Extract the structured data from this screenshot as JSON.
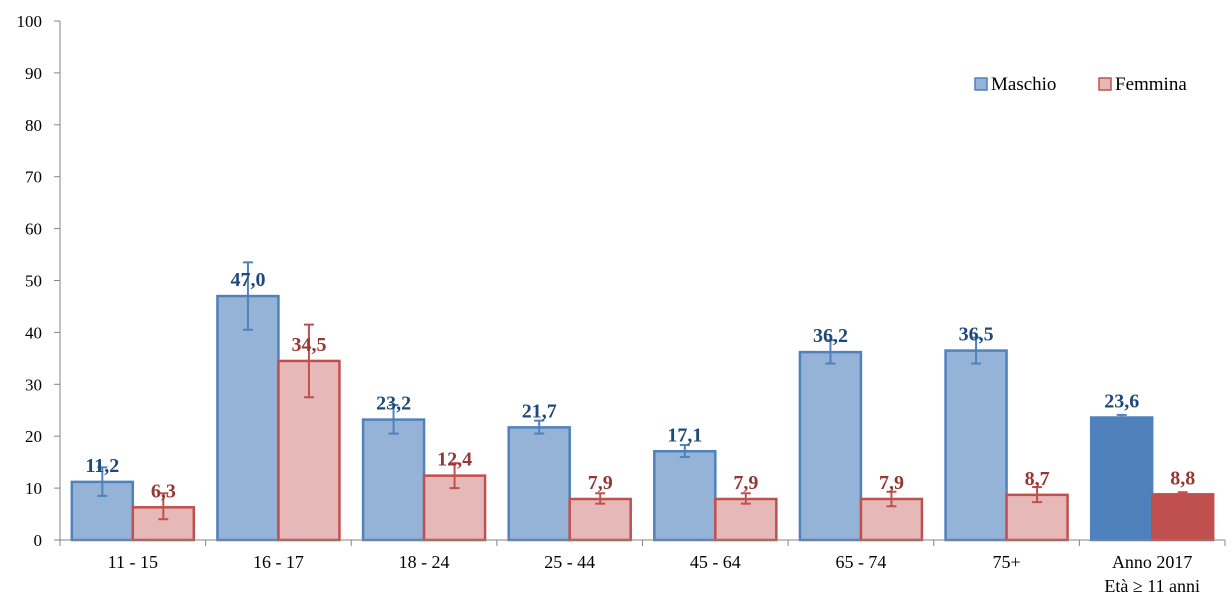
{
  "chart_data": {
    "type": "bar",
    "categories": [
      [
        "11 - 15"
      ],
      [
        "16 - 17"
      ],
      [
        "18 - 24"
      ],
      [
        "25 - 44"
      ],
      [
        "45 - 64"
      ],
      [
        "65 - 74"
      ],
      [
        "75+"
      ],
      [
        "Anno 2017",
        "Età ≥ 11 anni"
      ]
    ],
    "series": [
      {
        "name": "Maschio",
        "values": [
          11.2,
          47.0,
          23.2,
          21.7,
          17.1,
          36.2,
          36.5,
          23.6
        ],
        "labels": [
          "11,2",
          "47,0",
          "23,2",
          "21,7",
          "17,1",
          "36,2",
          "36,5",
          "23,6"
        ],
        "error_low": [
          8.5,
          40.5,
          20.5,
          20.5,
          16.0,
          34.0,
          34.0,
          23.2
        ],
        "error_high": [
          14.0,
          53.5,
          26.0,
          23.0,
          18.3,
          38.5,
          39.0,
          24.1
        ],
        "color": "#95b3d7",
        "border": "#4f81bd",
        "highlight_color": "#4f81bd",
        "label_color": "#1f497d"
      },
      {
        "name": "Femmina",
        "values": [
          6.3,
          34.5,
          12.4,
          7.9,
          7.9,
          7.9,
          8.7,
          8.8
        ],
        "labels": [
          "6,3",
          "34,5",
          "12,4",
          "7,9",
          "7,9",
          "7,9",
          "8,7",
          "8,8"
        ],
        "error_low": [
          4.0,
          27.5,
          10.0,
          7.0,
          7.0,
          6.5,
          7.3,
          8.4
        ],
        "error_high": [
          9.0,
          41.5,
          14.8,
          9.0,
          9.0,
          9.3,
          10.2,
          9.2
        ],
        "color": "#e6b9b8",
        "border": "#c0504d",
        "highlight_color": "#c0504d",
        "label_color": "#953735"
      }
    ],
    "highlight_last_category": true,
    "ylim": [
      0,
      100
    ],
    "yticks": [
      0,
      10,
      20,
      30,
      40,
      50,
      60,
      70,
      80,
      90,
      100
    ],
    "grid": false,
    "legend_position": "top-right",
    "title": "",
    "xlabel": "",
    "ylabel": ""
  }
}
